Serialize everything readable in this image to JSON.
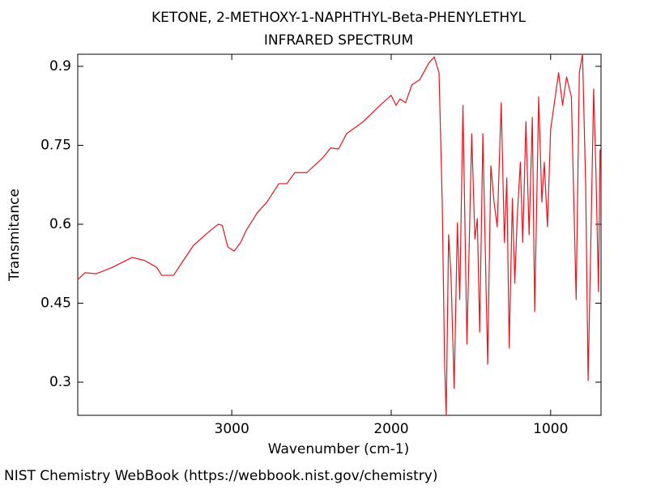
{
  "chart_data": {
    "type": "line",
    "title": "KETONE, 2-METHOXY-1-NAPHTHYL-Beta-PHENYLETHYL",
    "subtitle": "INFRARED SPECTRUM",
    "x_label": "Wavenumber (cm-1)",
    "y_label": "Transmitance",
    "footer": "NIST Chemistry WebBook (https://webbook.nist.gov/chemistry)",
    "xlim": [
      3966,
      684
    ],
    "ylim": [
      0.237,
      0.923
    ],
    "xticks": [
      3000,
      2000,
      1000
    ],
    "yticks": [
      0.3,
      0.45,
      0.6,
      0.75,
      0.9
    ],
    "x": [
      3966,
      3920,
      3850,
      3750,
      3625,
      3545,
      3470,
      3440,
      3365,
      3315,
      3240,
      3135,
      3085,
      3060,
      3025,
      2985,
      2945,
      2910,
      2840,
      2780,
      2705,
      2655,
      2605,
      2530,
      2430,
      2380,
      2330,
      2280,
      2175,
      2070,
      2000,
      1970,
      1945,
      1910,
      1870,
      1820,
      1765,
      1730,
      1700,
      1680,
      1665,
      1655,
      1640,
      1625,
      1605,
      1585,
      1570,
      1550,
      1525,
      1495,
      1475,
      1460,
      1445,
      1425,
      1395,
      1375,
      1355,
      1335,
      1310,
      1290,
      1275,
      1260,
      1240,
      1225,
      1210,
      1190,
      1175,
      1155,
      1135,
      1115,
      1100,
      1075,
      1055,
      1040,
      1020,
      1000,
      950,
      925,
      900,
      870,
      840,
      820,
      800,
      780,
      765,
      750,
      730,
      715,
      700,
      690
    ],
    "series": [
      {
        "color": "#e8141c",
        "values": [
          0.495,
          0.508,
          0.506,
          0.518,
          0.537,
          0.531,
          0.518,
          0.503,
          0.503,
          0.526,
          0.56,
          0.588,
          0.6,
          0.598,
          0.557,
          0.549,
          0.565,
          0.588,
          0.622,
          0.642,
          0.677,
          0.677,
          0.698,
          0.698,
          0.726,
          0.745,
          0.743,
          0.772,
          0.795,
          0.826,
          0.845,
          0.826,
          0.838,
          0.831,
          0.865,
          0.875,
          0.906,
          0.918,
          0.888,
          0.642,
          0.334,
          0.237,
          0.58,
          0.503,
          0.288,
          0.603,
          0.457,
          0.826,
          0.372,
          0.772,
          0.572,
          0.611,
          0.395,
          0.772,
          0.334,
          0.711,
          0.642,
          0.595,
          0.831,
          0.565,
          0.688,
          0.365,
          0.649,
          0.488,
          0.611,
          0.718,
          0.565,
          0.795,
          0.58,
          0.803,
          0.434,
          0.842,
          0.642,
          0.718,
          0.595,
          0.78,
          0.888,
          0.826,
          0.88,
          0.842,
          0.457,
          0.888,
          0.923,
          0.672,
          0.303,
          0.534,
          0.857,
          0.688,
          0.472,
          0.742
        ]
      }
    ]
  }
}
